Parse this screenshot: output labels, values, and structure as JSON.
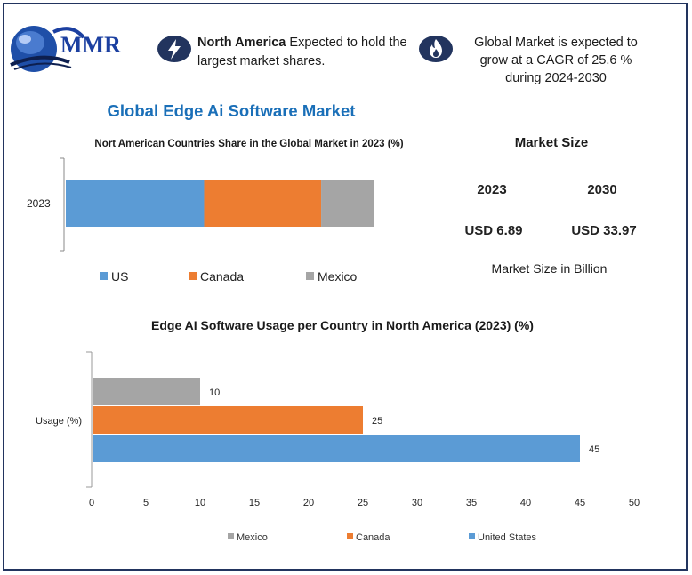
{
  "header": {
    "logo_text": "MMR",
    "highlight1_bold": "North America",
    "highlight1_rest": " Expected to hold the largest market shares.",
    "highlight2": "Global Market is expected to grow at a CAGR of 25.6 % during 2024-2030",
    "icon1": "lightning-icon",
    "icon2": "flame-icon"
  },
  "title": "Global Edge Ai Software Market",
  "market_size": {
    "title": "Market Size",
    "years": [
      "2023",
      "2030"
    ],
    "values": [
      "USD 6.89",
      "USD 33.97"
    ],
    "note": "Market Size in Billion"
  },
  "colors": {
    "us": "#5b9bd5",
    "canada": "#ed7d31",
    "mexico": "#a5a5a5",
    "title_blue": "#1a6fb8",
    "border": "#22345e"
  },
  "chart_data": [
    {
      "type": "bar",
      "orientation": "horizontal-stacked",
      "title": "Nort American Countries Share in the Global Market in 2023 (%)",
      "categories": [
        "2023"
      ],
      "series": [
        {
          "name": "US",
          "values": [
            26
          ]
        },
        {
          "name": "Canada",
          "values": [
            22
          ]
        },
        {
          "name": "Mexico",
          "values": [
            10
          ]
        }
      ],
      "legend": "bottom",
      "grid": false
    },
    {
      "type": "bar",
      "orientation": "horizontal",
      "title": "Edge AI Software Usage per Country in North America (2023) (%)",
      "categories": [
        "Usage (%)"
      ],
      "series": [
        {
          "name": "Mexico",
          "values": [
            10
          ]
        },
        {
          "name": "Canada",
          "values": [
            25
          ]
        },
        {
          "name": "United States",
          "values": [
            45
          ]
        }
      ],
      "xlim": [
        0,
        50
      ],
      "xticks": [
        "0",
        "5",
        "10",
        "15",
        "20",
        "25",
        "30",
        "35",
        "40",
        "45",
        "50"
      ],
      "data_labels": [
        "10",
        "25",
        "45"
      ],
      "legend": "bottom",
      "grid": false
    }
  ]
}
